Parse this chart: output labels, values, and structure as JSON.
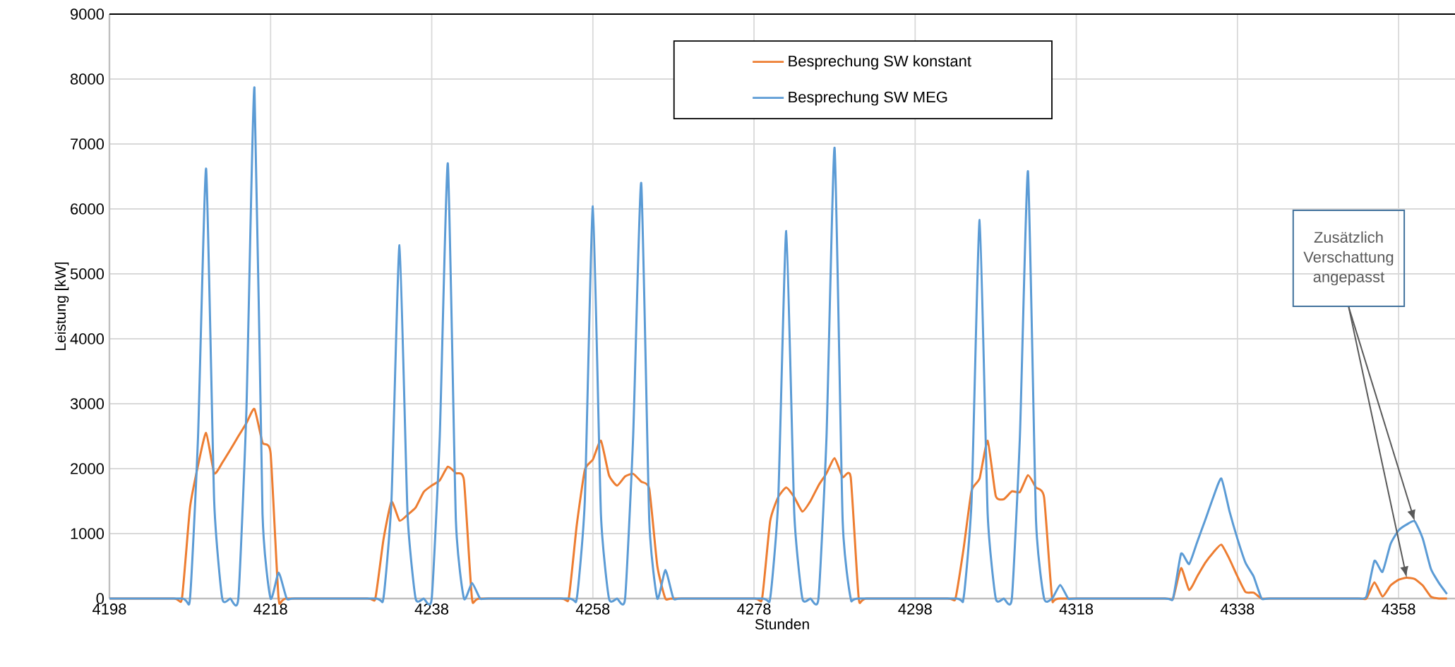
{
  "chart_data": {
    "type": "line",
    "xlabel": "Stunden",
    "ylabel": "Leistung [kW]",
    "xlim": [
      4198,
      4365
    ],
    "ylim": [
      0,
      9000
    ],
    "xticks": [
      4198,
      4218,
      4238,
      4258,
      4278,
      4298,
      4318,
      4338,
      4358
    ],
    "yticks": [
      0,
      1000,
      2000,
      3000,
      4000,
      5000,
      6000,
      7000,
      8000,
      9000
    ],
    "grid": true,
    "legend": "top",
    "series": [
      {
        "name": "Besprechung SW konstant",
        "color": "#ed7d31",
        "x": [
          4198,
          4206,
          4207,
          4208,
          4209,
          4210,
          4211,
          4212,
          4213,
          4214,
          4215,
          4216,
          4217,
          4218,
          4219,
          4220,
          4230,
          4231,
          4232,
          4233,
          4234,
          4235,
          4236,
          4237,
          4238,
          4239,
          4240,
          4241,
          4242,
          4243,
          4244,
          4254,
          4255,
          4256,
          4257,
          4258,
          4259,
          4260,
          4261,
          4262,
          4263,
          4264,
          4265,
          4266,
          4267,
          4268,
          4278,
          4279,
          4280,
          4281,
          4282,
          4283,
          4284,
          4285,
          4286,
          4287,
          4288,
          4289,
          4290,
          4291,
          4292,
          4302,
          4303,
          4304,
          4305,
          4306,
          4307,
          4308,
          4309,
          4310,
          4311,
          4312,
          4313,
          4314,
          4315,
          4316,
          4329,
          4330,
          4331,
          4332,
          4333,
          4334,
          4335,
          4336,
          4337,
          4338,
          4339,
          4340,
          4341,
          4342,
          4353,
          4354,
          4355,
          4356,
          4357,
          4358,
          4359,
          4360,
          4361,
          4362,
          4363,
          4364
        ],
        "values": [
          0,
          0,
          0,
          1400,
          2050,
          2550,
          1930,
          2090,
          2290,
          2500,
          2700,
          2920,
          2400,
          2240,
          0,
          0,
          0,
          0,
          900,
          1490,
          1200,
          1290,
          1400,
          1640,
          1740,
          1820,
          2030,
          1930,
          1820,
          0,
          0,
          0,
          0,
          1130,
          1980,
          2140,
          2430,
          1900,
          1740,
          1880,
          1920,
          1800,
          1690,
          500,
          0,
          0,
          0,
          0,
          1190,
          1560,
          1710,
          1560,
          1340,
          1500,
          1740,
          1930,
          2160,
          1870,
          1870,
          0,
          0,
          0,
          0,
          760,
          1660,
          1850,
          2430,
          1580,
          1530,
          1650,
          1640,
          1900,
          1710,
          1560,
          0,
          0,
          0,
          0,
          470,
          130,
          340,
          550,
          710,
          830,
          610,
          340,
          100,
          90,
          0,
          0,
          0,
          0,
          250,
          30,
          200,
          290,
          320,
          300,
          200,
          30,
          0,
          0
        ]
      },
      {
        "name": "Besprechung SW MEG",
        "color": "#5b9bd5",
        "x": [
          4198,
          4207,
          4208,
          4209,
          4210,
          4211,
          4212,
          4213,
          4214,
          4215,
          4216,
          4217,
          4218,
          4219,
          4220,
          4221,
          4231,
          4232,
          4233,
          4234,
          4235,
          4236,
          4237,
          4238,
          4239,
          4240,
          4241,
          4242,
          4243,
          4244,
          4245,
          4255,
          4256,
          4257,
          4258,
          4259,
          4260,
          4261,
          4262,
          4263,
          4264,
          4265,
          4266,
          4267,
          4268,
          4269,
          4279,
          4280,
          4281,
          4282,
          4283,
          4284,
          4285,
          4286,
          4287,
          4288,
          4289,
          4290,
          4291,
          4303,
          4304,
          4305,
          4306,
          4307,
          4308,
          4309,
          4310,
          4311,
          4312,
          4313,
          4314,
          4315,
          4316,
          4317,
          4318,
          4329,
          4330,
          4331,
          4332,
          4333,
          4334,
          4335,
          4336,
          4337,
          4338,
          4339,
          4340,
          4341,
          4342,
          4352,
          4353,
          4354,
          4355,
          4356,
          4357,
          4358,
          4359,
          4360,
          4361,
          4362,
          4363,
          4364
        ],
        "values": [
          0,
          0,
          0,
          2500,
          6620,
          1500,
          0,
          0,
          0,
          2900,
          7870,
          1300,
          0,
          400,
          0,
          0,
          0,
          0,
          1500,
          5440,
          1300,
          0,
          0,
          0,
          2500,
          6700,
          1200,
          0,
          240,
          0,
          0,
          0,
          0,
          1500,
          6040,
          1300,
          0,
          0,
          0,
          2500,
          6400,
          1200,
          0,
          440,
          0,
          0,
          0,
          0,
          1500,
          5660,
          1300,
          0,
          0,
          0,
          2500,
          6940,
          1200,
          0,
          0,
          0,
          0,
          1500,
          5830,
          1300,
          0,
          0,
          0,
          2500,
          6580,
          1200,
          0,
          0,
          210,
          0,
          0,
          0,
          0,
          690,
          530,
          870,
          1210,
          1560,
          1850,
          1350,
          920,
          550,
          340,
          0,
          0,
          0,
          0,
          30,
          580,
          410,
          840,
          1050,
          1140,
          1190,
          920,
          460,
          240,
          70
        ]
      }
    ],
    "annotations": [
      "Zusätzlich Verschattung angepasst"
    ]
  }
}
